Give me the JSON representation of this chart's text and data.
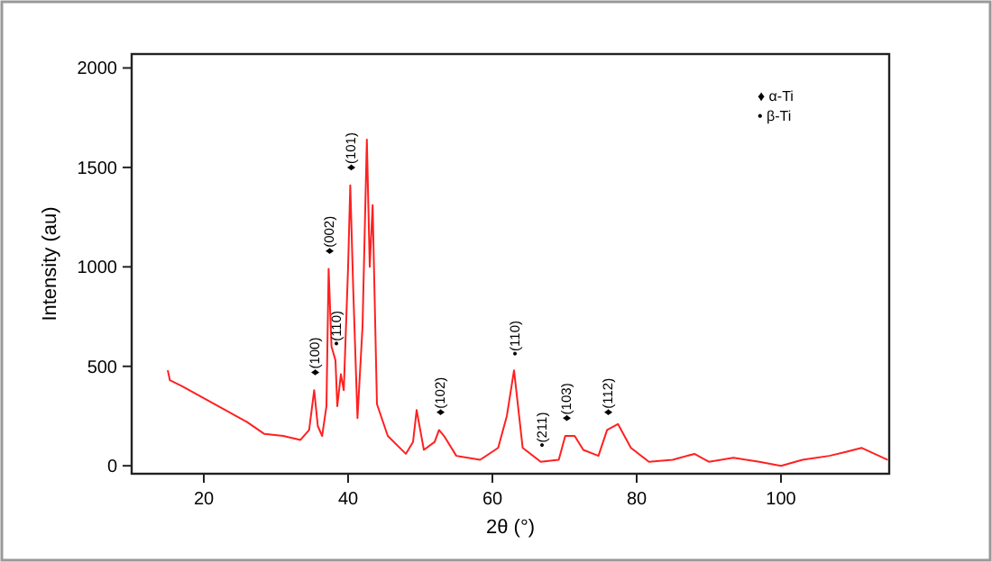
{
  "chart_data": {
    "type": "line",
    "xlabel": "2θ (°)",
    "ylabel": "Intensity (au)",
    "xlim": [
      10,
      115
    ],
    "xticks": [
      20,
      40,
      60,
      80,
      100
    ],
    "ylim": [
      -40,
      2070
    ],
    "yticks": [
      0,
      500,
      1000,
      1500,
      2000
    ],
    "grid": false,
    "line_style": "solid",
    "series": [
      {
        "color": "#ff2020",
        "x": [
          15,
          15.3,
          17,
          20,
          23,
          26,
          28.4,
          31,
          33.4,
          34.6,
          35.3,
          35.8,
          36.4,
          37,
          37.3,
          37.7,
          38.25,
          38.5,
          39,
          39.4,
          40,
          40.3,
          40.7,
          41.3,
          42,
          42.6,
          43,
          43.4,
          44,
          45.5,
          48,
          49,
          49.5,
          50.5,
          52,
          52.6,
          53.3,
          55,
          58.3,
          60.8,
          62,
          63,
          64.2,
          66.7,
          69.2,
          70.1,
          71.4,
          72.6,
          74.7,
          75.9,
          77.4,
          79.2,
          81.7,
          85,
          88,
          90,
          93.4,
          97,
          100,
          103,
          106.7,
          109,
          111.2,
          114.8
        ],
        "values": [
          480,
          430,
          400,
          340,
          280,
          220,
          160,
          150,
          130,
          180,
          380,
          200,
          150,
          300,
          990,
          600,
          530,
          300,
          460,
          380,
          1000,
          1410,
          900,
          240,
          700,
          1640,
          1000,
          1310,
          310,
          150,
          60,
          120,
          280,
          80,
          120,
          180,
          150,
          50,
          30,
          90,
          250,
          480,
          90,
          20,
          30,
          150,
          150,
          80,
          50,
          180,
          210,
          90,
          20,
          30,
          60,
          20,
          40,
          20,
          0,
          30,
          50,
          70,
          90,
          30
        ]
      }
    ],
    "annotations": [
      {
        "text": "♦(100)",
        "x": 35.3,
        "y": 380
      },
      {
        "text": "♦(002)",
        "x": 37.3,
        "y": 990
      },
      {
        "text": "•(110)",
        "x": 38.25,
        "y": 530
      },
      {
        "text": "♦(101)",
        "x": 40.3,
        "y": 1410
      },
      {
        "text": "♦(102)",
        "x": 52.6,
        "y": 180
      },
      {
        "text": "•(110)",
        "x": 63,
        "y": 480
      },
      {
        "text": "•(211)",
        "x": 66.7,
        "y": 20
      },
      {
        "text": "♦(103)",
        "x": 70.1,
        "y": 150
      },
      {
        "text": "♦(112)",
        "x": 75.9,
        "y": 180
      },
      "♦   α-Ti",
      "•   β-Ti"
    ]
  }
}
